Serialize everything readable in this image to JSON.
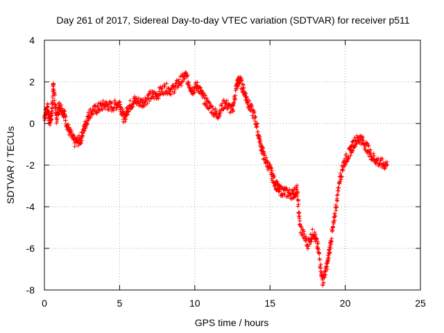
{
  "chart_data": {
    "type": "scatter",
    "title": "Day 261 of 2017, Sidereal Day-to-day VTEC variation (SDTVAR) for receiver p511",
    "xlabel": "GPS time / hours",
    "ylabel": "SDTVAR / TECUs",
    "xlim": [
      0,
      25
    ],
    "ylim": [
      -8,
      4
    ],
    "x_ticks": [
      0,
      5,
      10,
      15,
      20,
      25
    ],
    "y_ticks": [
      -8,
      -6,
      -4,
      -2,
      0,
      2,
      4
    ],
    "x_tick_labels": [
      "0",
      "5",
      "10",
      "15",
      "20",
      "25"
    ],
    "y_tick_labels": [
      "-8",
      "-6",
      "-4",
      "-2",
      "0",
      "2",
      "4"
    ],
    "grid": true,
    "marker": "+",
    "series": [
      {
        "name": "SDTVAR",
        "color": "#ff0000",
        "approximate_envelope": [
          [
            0.0,
            0.3
          ],
          [
            0.2,
            0.8
          ],
          [
            0.35,
            0.1
          ],
          [
            0.5,
            0.5
          ],
          [
            0.6,
            1.9
          ],
          [
            0.8,
            0.2
          ],
          [
            1.0,
            0.9
          ],
          [
            1.3,
            0.5
          ],
          [
            1.6,
            -0.3
          ],
          [
            2.0,
            -0.9
          ],
          [
            2.4,
            -0.8
          ],
          [
            2.7,
            -0.1
          ],
          [
            3.0,
            0.5
          ],
          [
            3.5,
            0.7
          ],
          [
            4.0,
            0.9
          ],
          [
            4.5,
            0.8
          ],
          [
            5.0,
            1.0
          ],
          [
            5.3,
            0.2
          ],
          [
            5.6,
            0.8
          ],
          [
            6.0,
            1.1
          ],
          [
            6.5,
            1.0
          ],
          [
            7.0,
            1.3
          ],
          [
            7.5,
            1.4
          ],
          [
            8.0,
            1.7
          ],
          [
            8.5,
            1.6
          ],
          [
            9.0,
            2.0
          ],
          [
            9.4,
            2.3
          ],
          [
            9.8,
            1.6
          ],
          [
            10.2,
            1.8
          ],
          [
            10.6,
            1.2
          ],
          [
            11.0,
            0.8
          ],
          [
            11.5,
            0.4
          ],
          [
            12.0,
            1.0
          ],
          [
            12.5,
            0.6
          ],
          [
            12.8,
            1.9
          ],
          [
            13.0,
            2.1
          ],
          [
            13.3,
            1.5
          ],
          [
            13.6,
            0.9
          ],
          [
            14.0,
            0.3
          ],
          [
            14.3,
            -0.8
          ],
          [
            14.6,
            -1.6
          ],
          [
            15.0,
            -2.2
          ],
          [
            15.3,
            -2.8
          ],
          [
            15.6,
            -3.2
          ],
          [
            16.0,
            -3.3
          ],
          [
            16.5,
            -3.4
          ],
          [
            16.8,
            -3.2
          ],
          [
            17.0,
            -5.0
          ],
          [
            17.5,
            -5.8
          ],
          [
            17.9,
            -5.2
          ],
          [
            18.2,
            -6.0
          ],
          [
            18.5,
            -7.6
          ],
          [
            18.8,
            -6.8
          ],
          [
            19.0,
            -5.9
          ],
          [
            19.3,
            -4.5
          ],
          [
            19.6,
            -2.8
          ],
          [
            19.9,
            -1.9
          ],
          [
            20.3,
            -1.4
          ],
          [
            20.6,
            -0.9
          ],
          [
            21.0,
            -0.7
          ],
          [
            21.4,
            -1.1
          ],
          [
            21.8,
            -1.6
          ],
          [
            22.3,
            -1.9
          ],
          [
            22.8,
            -2.0
          ]
        ]
      }
    ]
  }
}
